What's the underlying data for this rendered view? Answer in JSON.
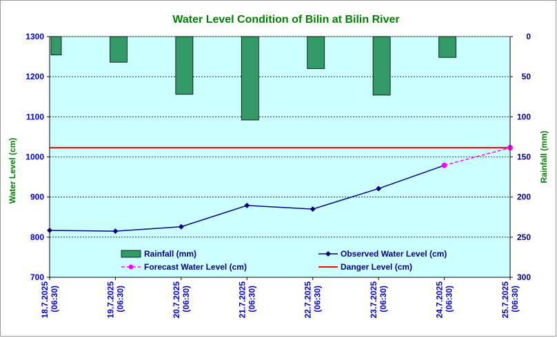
{
  "chart_data": {
    "type": "bar+line",
    "title": "Water Level Condition of Bilin at Bilin River",
    "ylabel_left": "Water Level (cm)",
    "ylabel_right": "Rainfall (mm)",
    "ylim_left": [
      700,
      1300
    ],
    "yticks_left": [
      700,
      800,
      900,
      1000,
      1100,
      1200,
      1300
    ],
    "ylim_right": [
      0,
      300
    ],
    "yticks_right": [
      0,
      50,
      100,
      150,
      200,
      250,
      300
    ],
    "right_axis_inverted": true,
    "grid": "horizontal-dotted",
    "categories": [
      [
        "18.7.2025",
        "(06:30)"
      ],
      [
        "19.7.2025",
        "(06:30)"
      ],
      [
        "20.7.2025",
        "(06:30)"
      ],
      [
        "21.7.2025",
        "(06:30)"
      ],
      [
        "22.7.2025",
        "(06:30)"
      ],
      [
        "23.7.2025",
        "(06:30)"
      ],
      [
        "24.7.2025",
        "(06:30)"
      ],
      [
        "25.7.2025",
        "(06:30)"
      ]
    ],
    "rainfall": {
      "name": "Rainfall (mm)",
      "color": "#339966",
      "values": [
        23,
        32,
        72,
        104,
        40,
        73,
        26
      ]
    },
    "observed": {
      "name": "Observed Water Level (cm)",
      "color": "#000080",
      "values": [
        817,
        815,
        826,
        879,
        870,
        921,
        979
      ]
    },
    "forecast": {
      "name": "Forecast Water Level (cm)",
      "color": "#ff00ff",
      "values": [
        null,
        null,
        null,
        null,
        null,
        null,
        979,
        1023
      ]
    },
    "danger": {
      "name": "Danger Level (cm)",
      "color": "#ff0000",
      "value": 1023
    },
    "colors": {
      "title": "#008000",
      "left_axis": "#0000cc",
      "left_label": "#008000",
      "right_axis": "#000080",
      "right_label": "#008000",
      "x_labels": "#0000cc",
      "plot_bg": "#ccffff"
    },
    "legend_placement": "bottom-inside"
  }
}
